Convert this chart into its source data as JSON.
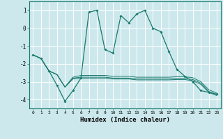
{
  "title": "",
  "xlabel": "Humidex (Indice chaleur)",
  "ylabel": "",
  "bg_color": "#cce8ec",
  "grid_color": "#ffffff",
  "line_color": "#1a7a6e",
  "ylim": [
    -4.5,
    1.5
  ],
  "xlim": [
    -0.5,
    23.5
  ],
  "yticks": [
    -4,
    -3,
    -2,
    -1,
    0,
    1
  ],
  "xticks": [
    0,
    1,
    2,
    3,
    4,
    5,
    6,
    7,
    8,
    9,
    10,
    11,
    12,
    13,
    14,
    15,
    16,
    17,
    18,
    19,
    20,
    21,
    22,
    23
  ],
  "series1_x": [
    0,
    1,
    2,
    3,
    4,
    5,
    6,
    7,
    8,
    9,
    10,
    11,
    12,
    13,
    14,
    15,
    16,
    17,
    18,
    19,
    20,
    21,
    22,
    23
  ],
  "series1_y": [
    -1.5,
    -1.7,
    -2.4,
    -3.2,
    -4.1,
    -3.5,
    -2.8,
    0.9,
    1.0,
    -1.2,
    -1.4,
    0.7,
    0.3,
    0.8,
    1.0,
    0.0,
    -0.2,
    -1.3,
    -2.3,
    -2.7,
    -3.0,
    -3.5,
    -3.6,
    -3.7
  ],
  "series2_x": [
    0,
    1,
    2,
    3,
    4,
    5,
    6,
    7,
    8,
    9,
    10,
    11,
    12,
    13,
    14,
    15,
    16,
    17,
    18,
    19,
    20,
    21,
    22,
    23
  ],
  "series2_y": [
    -1.5,
    -1.7,
    -2.4,
    -2.6,
    -3.3,
    -2.75,
    -2.65,
    -2.65,
    -2.65,
    -2.65,
    -2.7,
    -2.7,
    -2.7,
    -2.75,
    -2.75,
    -2.75,
    -2.75,
    -2.75,
    -2.72,
    -2.72,
    -2.78,
    -3.0,
    -3.45,
    -3.65
  ],
  "series3_x": [
    0,
    1,
    2,
    3,
    4,
    5,
    6,
    7,
    8,
    9,
    10,
    11,
    12,
    13,
    14,
    15,
    16,
    17,
    18,
    19,
    20,
    21,
    22,
    23
  ],
  "series3_y": [
    -1.5,
    -1.7,
    -2.4,
    -2.6,
    -3.3,
    -2.8,
    -2.75,
    -2.75,
    -2.75,
    -2.75,
    -2.8,
    -2.8,
    -2.8,
    -2.85,
    -2.85,
    -2.85,
    -2.85,
    -2.85,
    -2.82,
    -2.82,
    -2.88,
    -3.08,
    -3.55,
    -3.72
  ],
  "series4_x": [
    0,
    1,
    2,
    3,
    4,
    5,
    6,
    7,
    8,
    9,
    10,
    11,
    12,
    13,
    14,
    15,
    16,
    17,
    18,
    19,
    20,
    21,
    22,
    23
  ],
  "series4_y": [
    -1.5,
    -1.7,
    -2.4,
    -2.6,
    -3.3,
    -2.85,
    -2.8,
    -2.8,
    -2.8,
    -2.8,
    -2.85,
    -2.85,
    -2.85,
    -2.9,
    -2.9,
    -2.9,
    -2.9,
    -2.9,
    -2.88,
    -2.88,
    -2.95,
    -3.15,
    -3.6,
    -3.78
  ]
}
